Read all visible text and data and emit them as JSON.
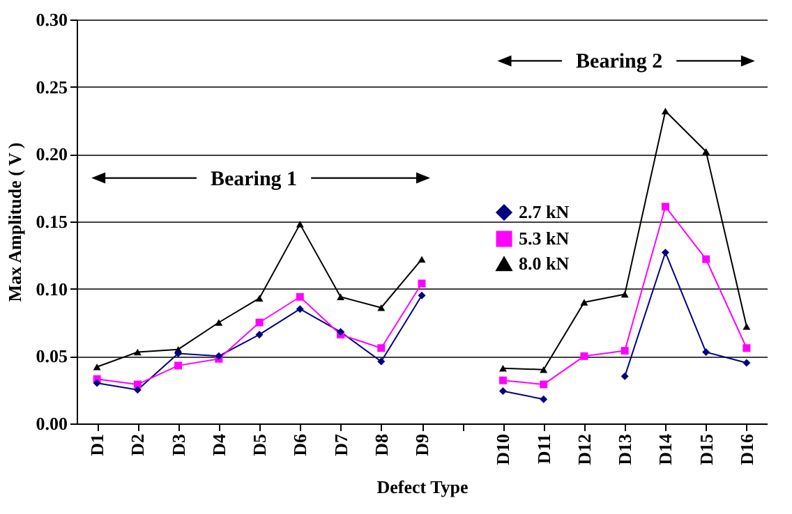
{
  "chart_data": {
    "type": "line",
    "xlabel": "Defect Type",
    "ylabel": "Max Amplitude ( V )",
    "categories": [
      "D1",
      "D2",
      "D3",
      "D4",
      "D5",
      "D6",
      "D7",
      "D8",
      "D9",
      null,
      "D10",
      "D11",
      "D12",
      "D13",
      "D14",
      "D15",
      "D16"
    ],
    "series": [
      {
        "name": "2.7 kN",
        "color": "#000080",
        "marker": "diamond",
        "values": [
          0.03,
          0.025,
          0.052,
          0.05,
          0.066,
          0.085,
          0.068,
          0.046,
          0.095,
          null,
          0.024,
          0.018,
          null,
          0.035,
          0.127,
          0.053,
          0.045
        ]
      },
      {
        "name": "5.3 kN",
        "color": "#ff00ff",
        "marker": "square",
        "values": [
          0.033,
          0.029,
          0.043,
          0.048,
          0.075,
          0.094,
          0.066,
          0.056,
          0.104,
          null,
          0.032,
          0.029,
          0.05,
          0.054,
          0.161,
          0.122,
          0.056
        ]
      },
      {
        "name": "8.0 kN",
        "color": "#000000",
        "marker": "triangle",
        "values": [
          0.042,
          0.053,
          0.055,
          0.075,
          0.093,
          0.148,
          0.094,
          0.086,
          0.122,
          null,
          0.041,
          0.04,
          0.09,
          0.096,
          0.232,
          0.202,
          0.072
        ]
      }
    ],
    "ylim": [
      0,
      0.3
    ],
    "yticks": [
      {
        "value": 0,
        "label": "0.00"
      },
      {
        "value": 0.05,
        "label": "0.05"
      },
      {
        "value": 0.1,
        "label": "0.10"
      },
      {
        "value": 0.15,
        "label": "0.15"
      },
      {
        "value": 0.2,
        "label": "0.20"
      },
      {
        "value": 0.25,
        "label": "0.25"
      },
      {
        "value": 0.3,
        "label": "0.30"
      }
    ],
    "grid": "y",
    "legend": "right",
    "line_style": "solid",
    "annotations": [
      "Bearing 1",
      "Bearing 2"
    ]
  }
}
